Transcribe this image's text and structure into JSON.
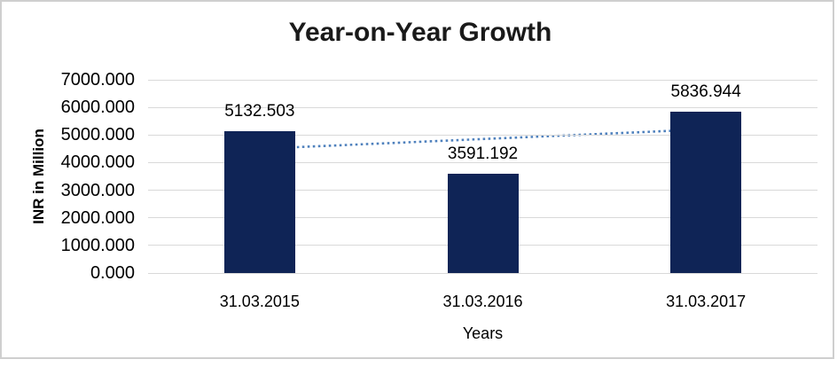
{
  "frame": {
    "border_color": "#cfcfcf",
    "background_color": "#ffffff"
  },
  "chart_data": {
    "type": "bar",
    "title": "Year-on-Year Growth",
    "xlabel": "Years",
    "ylabel": "INR in Million",
    "categories": [
      "31.03.2015",
      "31.03.2016",
      "31.03.2017"
    ],
    "values": [
      5132.503,
      3591.192,
      5836.944
    ],
    "data_labels": [
      "5132.503",
      "3591.192",
      "5836.944"
    ],
    "ylim": [
      0,
      7000
    ],
    "ytick_interval": 1000,
    "ytick_labels": [
      "0.000",
      "1000.000",
      "2000.000",
      "3000.000",
      "4000.000",
      "5000.000",
      "6000.000",
      "7000.000"
    ],
    "grid": true,
    "legend": "none",
    "bar_color": "#0f2456",
    "gridline_color": "#d9d9d9",
    "text_color": "#000000",
    "trendline": {
      "style": "dotted",
      "color": "#4f81bd",
      "start_value": 4501.3,
      "end_value": 5205.8
    }
  }
}
